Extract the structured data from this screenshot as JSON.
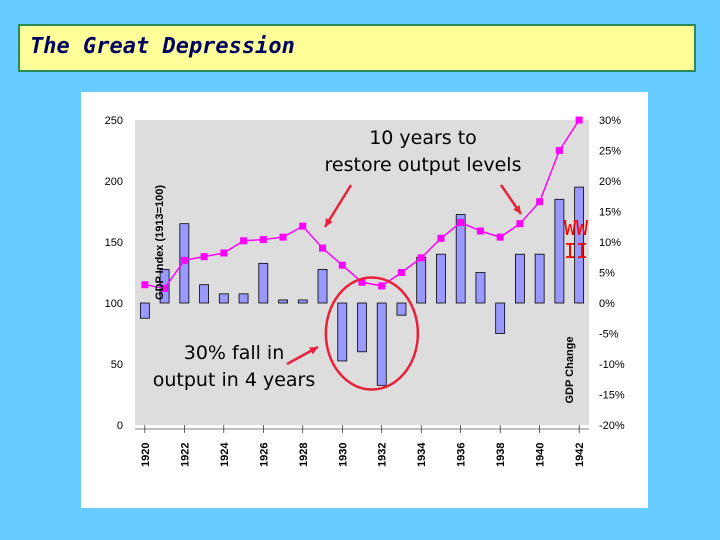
{
  "slide": {
    "title": "The Great Depression"
  },
  "chart_data": {
    "type": "bar+line",
    "x_ticks": [
      "1920",
      "1922",
      "1924",
      "1926",
      "1928",
      "1930",
      "1932",
      "1934",
      "1936",
      "1938",
      "1940",
      "1942"
    ],
    "years": [
      1920,
      1921,
      1922,
      1923,
      1924,
      1925,
      1926,
      1927,
      1928,
      1929,
      1930,
      1931,
      1932,
      1933,
      1934,
      1935,
      1936,
      1937,
      1938,
      1939,
      1940,
      1941,
      1942
    ],
    "series": [
      {
        "name": "GDP Index (1913=100)",
        "kind": "line",
        "axis": "left",
        "color": "#ff00ff",
        "values": [
          115,
          112,
          135,
          138,
          141,
          151,
          152,
          154,
          163,
          145,
          131,
          117,
          114,
          125,
          137,
          153,
          166,
          159,
          154,
          165,
          183,
          225,
          250
        ]
      },
      {
        "name": "GDP Change",
        "kind": "bar",
        "axis": "right",
        "color": "#9999ff",
        "values": [
          -2.5,
          5.5,
          13,
          3,
          1.5,
          1.5,
          6.5,
          0.5,
          0.5,
          5.5,
          -9.5,
          -8,
          -13.5,
          -2,
          7.5,
          8,
          14.5,
          5,
          -5,
          8,
          8,
          17,
          19
        ]
      }
    ],
    "y_left": {
      "label": "GDP Index (1913=100)",
      "ticks": [
        "0",
        "50",
        "100",
        "150",
        "200",
        "250"
      ],
      "range": [
        0,
        250
      ]
    },
    "y_right": {
      "label": "GDP Change",
      "ticks": [
        "-20%",
        "-15%",
        "-10%",
        "-5%",
        "0%",
        "5%",
        "10%",
        "15%",
        "20%",
        "25%",
        "30%"
      ],
      "range": [
        -20,
        30
      ]
    },
    "annotations": [
      {
        "text": "10 years to\nrestore output levels"
      },
      {
        "text": "30% fall in\noutput in 4 years"
      },
      {
        "text": "WW\nII",
        "color": "#ff0000"
      }
    ],
    "highlight_color": "#e8203a",
    "plot_background": "#dddddd",
    "grid": false
  }
}
